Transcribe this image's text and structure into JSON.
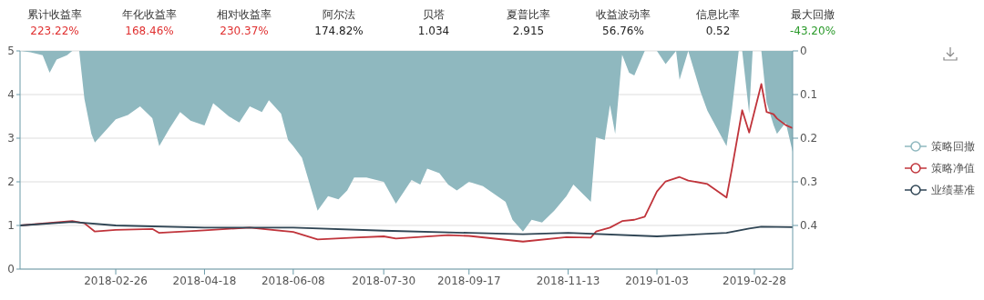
{
  "chart_data": {
    "type": "line",
    "annotations": [
      "累计收益率",
      "223.22%",
      "年化收益率",
      "168.46%",
      "相对收益率",
      "230.37%",
      "阿尔法",
      "174.82%",
      "贝塔",
      "1.034",
      "夏普比率",
      "2.915",
      "收益波动率",
      "56.76%",
      "信息比率",
      "0.52",
      "最大回撤",
      "-43.20%"
    ],
    "xlim": [
      "2018-01-02",
      "2019-03-22"
    ],
    "xticks": [
      "2018-02-26",
      "2018-04-18",
      "2018-06-08",
      "2018-07-30",
      "2018-09-17",
      "2018-11-13",
      "2019-01-03",
      "2019-02-28"
    ],
    "ylim": [
      0,
      5
    ],
    "yticks": [
      0,
      1,
      2,
      3,
      4,
      5
    ],
    "y2lim": [
      0.5,
      0
    ],
    "y2ticks": [
      0,
      0.1,
      0.2,
      0.3,
      0.4
    ],
    "grid": "y",
    "legend": "right",
    "series": [
      {
        "name": "策略回撤",
        "type": "area",
        "axis": "y2",
        "color": "#8fb8bf",
        "x": [
          "2018-01-02",
          "2018-01-08",
          "2018-01-15",
          "2018-01-19",
          "2018-01-23",
          "2018-01-29",
          "2018-02-01",
          "2018-02-05",
          "2018-02-08",
          "2018-02-12",
          "2018-02-14",
          "2018-02-26",
          "2018-03-05",
          "2018-03-12",
          "2018-03-19",
          "2018-03-23",
          "2018-03-29",
          "2018-04-04",
          "2018-04-10",
          "2018-04-18",
          "2018-04-23",
          "2018-05-02",
          "2018-05-08",
          "2018-05-14",
          "2018-05-21",
          "2018-05-25",
          "2018-06-01",
          "2018-06-05",
          "2018-06-08",
          "2018-06-13",
          "2018-06-19",
          "2018-06-22",
          "2018-06-28",
          "2018-07-04",
          "2018-07-09",
          "2018-07-13",
          "2018-07-20",
          "2018-07-30",
          "2018-08-06",
          "2018-08-10",
          "2018-08-15",
          "2018-08-20",
          "2018-08-24",
          "2018-08-31",
          "2018-09-05",
          "2018-09-10",
          "2018-09-17",
          "2018-09-25",
          "2018-10-08",
          "2018-10-12",
          "2018-10-18",
          "2018-10-23",
          "2018-10-29",
          "2018-11-05",
          "2018-11-12",
          "2018-11-16",
          "2018-11-21",
          "2018-11-26",
          "2018-11-29",
          "2018-12-04",
          "2018-12-07",
          "2018-12-10",
          "2018-12-14",
          "2018-12-18",
          "2018-12-21",
          "2018-12-27",
          "2019-01-03",
          "2019-01-08",
          "2019-01-14",
          "2019-01-16",
          "2019-01-21",
          "2019-01-28",
          "2019-02-01",
          "2019-02-12",
          "2019-02-15",
          "2019-02-19",
          "2019-02-21",
          "2019-02-25",
          "2019-02-27",
          "2019-03-04",
          "2019-03-07",
          "2019-03-11",
          "2019-03-13",
          "2019-03-18",
          "2019-03-22"
        ],
        "values": [
          0,
          0.003,
          0.01,
          0.05,
          0.02,
          0.01,
          0,
          0,
          0.11,
          0.19,
          0.21,
          0.157,
          0.147,
          0.127,
          0.154,
          0.218,
          0.177,
          0.14,
          0.16,
          0.171,
          0.12,
          0.15,
          0.164,
          0.127,
          0.14,
          0.113,
          0.144,
          0.204,
          0.218,
          0.245,
          0.326,
          0.366,
          0.333,
          0.34,
          0.32,
          0.29,
          0.29,
          0.3,
          0.35,
          0.326,
          0.296,
          0.306,
          0.27,
          0.28,
          0.306,
          0.32,
          0.3,
          0.31,
          0.346,
          0.387,
          0.414,
          0.387,
          0.393,
          0.366,
          0.333,
          0.306,
          0.326,
          0.346,
          0.198,
          0.204,
          0.124,
          0.19,
          0.009,
          0.05,
          0.056,
          0,
          0,
          0.03,
          0,
          0.066,
          0,
          0.093,
          0.137,
          0.218,
          0.137,
          0,
          0,
          0.144,
          0,
          0,
          0.117,
          0.17,
          0.19,
          0.164,
          0.231
        ]
      },
      {
        "name": "策略净值",
        "color": "#c0343b",
        "x": [
          "2018-01-02",
          "2018-02-01",
          "2018-02-08",
          "2018-02-14",
          "2018-02-26",
          "2018-03-19",
          "2018-03-23",
          "2018-04-18",
          "2018-05-14",
          "2018-06-08",
          "2018-06-22",
          "2018-07-13",
          "2018-07-30",
          "2018-08-06",
          "2018-09-05",
          "2018-09-17",
          "2018-10-18",
          "2018-11-12",
          "2018-11-26",
          "2018-11-29",
          "2018-12-07",
          "2018-12-14",
          "2018-12-21",
          "2018-12-27",
          "2019-01-03",
          "2019-01-08",
          "2019-01-16",
          "2019-01-21",
          "2019-02-01",
          "2019-02-12",
          "2019-02-15",
          "2019-02-21",
          "2019-02-25",
          "2019-03-04",
          "2019-03-07",
          "2019-03-11",
          "2019-03-13",
          "2019-03-18",
          "2019-03-22"
        ],
        "values": [
          1.0,
          1.1,
          1.05,
          0.86,
          0.9,
          0.92,
          0.83,
          0.89,
          0.95,
          0.85,
          0.68,
          0.72,
          0.75,
          0.7,
          0.78,
          0.76,
          0.63,
          0.73,
          0.72,
          0.86,
          0.95,
          1.1,
          1.13,
          1.2,
          1.78,
          2.01,
          2.11,
          2.03,
          1.95,
          1.64,
          2.28,
          3.64,
          3.13,
          4.24,
          3.6,
          3.55,
          3.45,
          3.3,
          3.23
        ]
      },
      {
        "name": "业绩基准",
        "color": "#2f4554",
        "x": [
          "2018-01-02",
          "2018-02-01",
          "2018-02-26",
          "2018-04-18",
          "2018-06-08",
          "2018-07-30",
          "2018-09-17",
          "2018-10-18",
          "2018-11-13",
          "2019-01-03",
          "2019-02-12",
          "2019-02-25",
          "2019-03-04",
          "2019-03-22"
        ],
        "values": [
          1.0,
          1.08,
          1.0,
          0.95,
          0.95,
          0.88,
          0.83,
          0.8,
          0.83,
          0.75,
          0.83,
          0.93,
          0.97,
          0.96
        ]
      }
    ]
  }
}
